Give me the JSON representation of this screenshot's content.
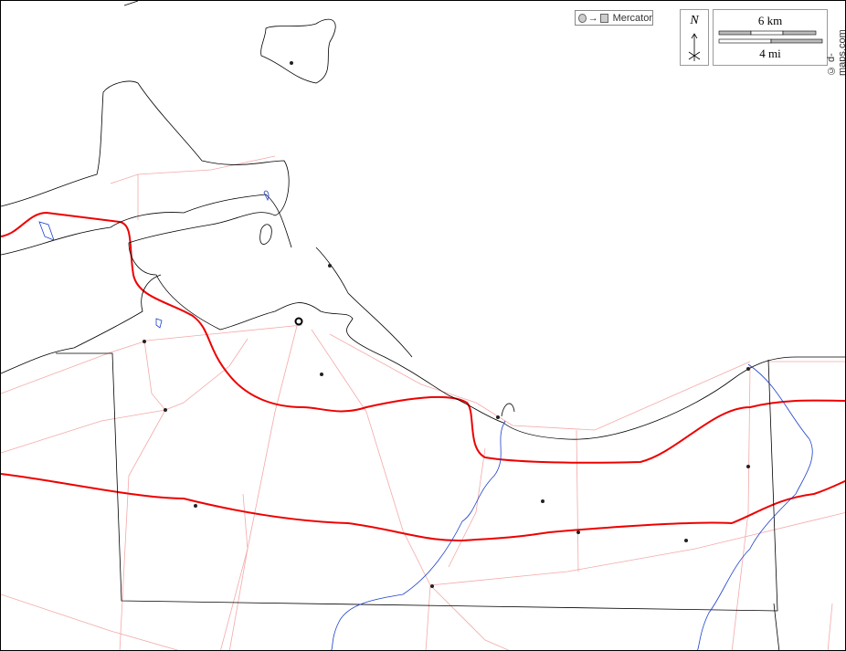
{
  "projection": {
    "label": "Mercator",
    "icon_from": "circle-icon",
    "icon_to": "square-icon"
  },
  "north_arrow": {
    "label": "N"
  },
  "scale_bar": {
    "km_label": "6 km",
    "mi_label": "4 mi"
  },
  "credit": "© d-maps.com",
  "colors": {
    "coastline": "#000000",
    "border": "#000000",
    "major_road": "#ff0000",
    "minor_road": "#f4a0a0",
    "river": "#1a3fcc"
  }
}
